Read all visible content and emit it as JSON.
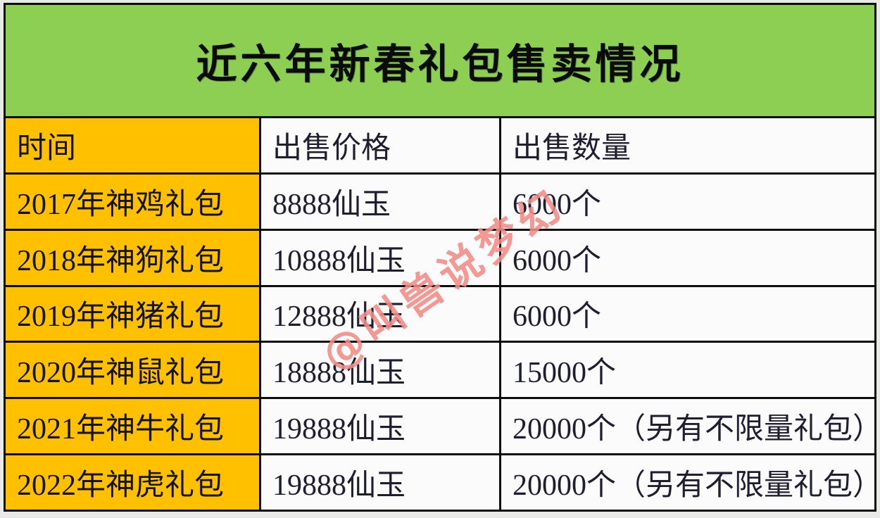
{
  "title": "近六年新春礼包售卖情况",
  "watermark": "@叫兽说梦幻",
  "table": {
    "headers": [
      "时间",
      "出售价格",
      "出售数量"
    ],
    "rows": [
      [
        "2017年神鸡礼包",
        "8888仙玉",
        "6000个"
      ],
      [
        "2018年神狗礼包",
        "10888仙玉",
        "6000个"
      ],
      [
        "2019年神猪礼包",
        "12888仙玉",
        "6000个"
      ],
      [
        "2020年神鼠礼包",
        "18888仙玉",
        "15000个"
      ],
      [
        "2021年神牛礼包",
        "19888仙玉",
        "20000个（另有不限量礼包）"
      ],
      [
        "2022年神虎礼包",
        "19888仙玉",
        "20000个（另有不限量礼包）"
      ]
    ]
  },
  "chart_data": {
    "type": "table",
    "title": "近六年新春礼包售卖情况",
    "columns": [
      "时间",
      "出售价格",
      "出售数量"
    ],
    "rows": [
      [
        "2017年神鸡礼包",
        "8888仙玉",
        "6000个"
      ],
      [
        "2018年神狗礼包",
        "10888仙玉",
        "6000个"
      ],
      [
        "2019年神猪礼包",
        "12888仙玉",
        "6000个"
      ],
      [
        "2020年神鼠礼包",
        "18888仙玉",
        "15000个"
      ],
      [
        "2021年神牛礼包",
        "19888仙玉",
        "20000个（另有不限量礼包）"
      ],
      [
        "2022年神虎礼包",
        "19888仙玉",
        "20000个（另有不限量礼包）"
      ]
    ],
    "series": [
      {
        "name": "出售价格(仙玉)",
        "values": [
          8888,
          10888,
          12888,
          18888,
          19888,
          19888
        ]
      },
      {
        "name": "出售数量(个)",
        "values": [
          6000,
          6000,
          6000,
          15000,
          20000,
          20000
        ]
      }
    ],
    "categories": [
      "2017年神鸡礼包",
      "2018年神狗礼包",
      "2019年神猪礼包",
      "2020年神鼠礼包",
      "2021年神牛礼包",
      "2022年神虎礼包"
    ],
    "annotations": [
      "2021、2022年：另有不限量礼包"
    ]
  },
  "colors": {
    "banner_green": "#8dcf53",
    "key_column_gold": "#ffc000",
    "cell_white": "#fbfbfc",
    "border_black": "#0d0d0d",
    "text_dark": "#1e1e30",
    "watermark_pink": "#f28b84",
    "page_background": "#e9e9e7"
  }
}
